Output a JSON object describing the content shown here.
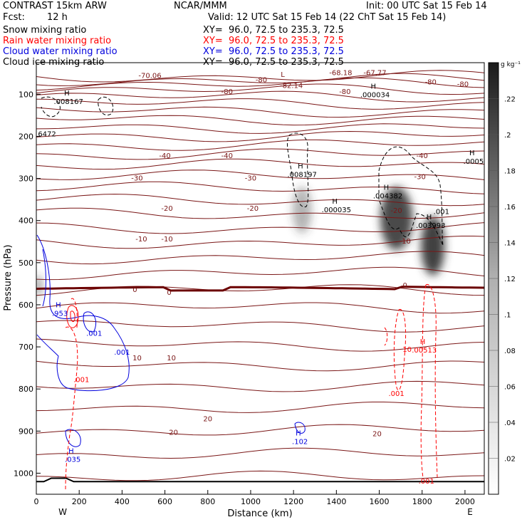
{
  "header": {
    "title": "CONTRAST 15km ARW",
    "fcst_label": "Fcst:",
    "fcst_value": "12 h",
    "center": "NCAR/MMM",
    "init": "Init: 00 UTC Sat 15 Feb 14",
    "valid": "Valid: 12 UTC Sat 15 Feb 14 (22 ChT Sat 15 Feb 14)"
  },
  "fields": [
    {
      "name": "Snow mixing ratio",
      "xy": "XY=  96.0, 72.5 to 235.3, 72.5",
      "color": "#000000"
    },
    {
      "name": "Rain water mixing ratio",
      "xy": "XY=  96.0, 72.5 to 235.3, 72.5",
      "color": "#ff0000"
    },
    {
      "name": "Cloud water mixing ratio",
      "xy": "XY=  96.0, 72.5 to 235.3, 72.5",
      "color": "#0000dd"
    },
    {
      "name": "Cloud ice mixing ratio",
      "xy": "XY=  96.0, 72.5 to 235.3, 72.5",
      "color": "#000000"
    }
  ],
  "colors": {
    "temperature": "#7a1616",
    "freezing": "#6b0000",
    "rain": "#ff0000",
    "cloud_water": "#0000dd",
    "cloud_ice": "#000000",
    "snow_shade": "#3a3a3a"
  },
  "chart_data": {
    "type": "contour cross-section",
    "xlabel": "Distance (km)",
    "ylabel": "Pressure (hPa)",
    "xlim": [
      0,
      2090
    ],
    "ylim": [
      1050,
      25
    ],
    "xticks": [
      "0",
      "200",
      "400",
      "600",
      "800",
      "1000",
      "1200",
      "1400",
      "1600",
      "1800",
      "2000"
    ],
    "yticks": [
      "100",
      "200",
      "300",
      "400",
      "500",
      "600",
      "700",
      "800",
      "900",
      "1000"
    ],
    "x_end_labels": {
      "left": "W",
      "right": "E"
    },
    "colorbar": {
      "unit": "g kg⁻¹",
      "ticks": [
        ".02",
        ".04",
        ".06",
        ".08",
        ".1",
        ".12",
        ".14",
        ".16",
        ".18",
        ".2",
        ".22"
      ],
      "range": [
        0,
        0.24
      ]
    },
    "temperature_labels": [
      {
        "text": "-70.06",
        "x": 530,
        "p": 55
      },
      {
        "text": "-80",
        "x": 1050,
        "p": 65
      },
      {
        "text": "L",
        "x": 1150,
        "p": 52
      },
      {
        "text": "-82.14",
        "x": 1190,
        "p": 78
      },
      {
        "text": "-68.18",
        "x": 1420,
        "p": 48
      },
      {
        "text": "-67.77",
        "x": 1580,
        "p": 48
      },
      {
        "text": "-80",
        "x": 890,
        "p": 93
      },
      {
        "text": "-80",
        "x": 1440,
        "p": 93
      },
      {
        "text": "-80",
        "x": 1840,
        "p": 70
      },
      {
        "text": "-80",
        "x": 1990,
        "p": 75
      },
      {
        "text": "-40",
        "x": 600,
        "p": 245
      },
      {
        "text": "-40",
        "x": 890,
        "p": 245
      },
      {
        "text": "-40",
        "x": 1800,
        "p": 245
      },
      {
        "text": "-30",
        "x": 470,
        "p": 298
      },
      {
        "text": "-30",
        "x": 1000,
        "p": 298
      },
      {
        "text": "-30",
        "x": 1790,
        "p": 295
      },
      {
        "text": "-20",
        "x": 610,
        "p": 370
      },
      {
        "text": "-20",
        "x": 1010,
        "p": 370
      },
      {
        "text": "-20",
        "x": 1680,
        "p": 375
      },
      {
        "text": "-10",
        "x": 490,
        "p": 443
      },
      {
        "text": "-10",
        "x": 610,
        "p": 443
      },
      {
        "text": "-10",
        "x": 1720,
        "p": 448
      },
      {
        "text": "0",
        "x": 460,
        "p": 563
      },
      {
        "text": "0",
        "x": 620,
        "p": 570
      },
      {
        "text": "0",
        "x": 1720,
        "p": 553
      },
      {
        "text": "10",
        "x": 470,
        "p": 725
      },
      {
        "text": "10",
        "x": 630,
        "p": 725
      },
      {
        "text": "20",
        "x": 800,
        "p": 870
      },
      {
        "text": "20",
        "x": 640,
        "p": 902
      },
      {
        "text": "20",
        "x": 1590,
        "p": 905
      }
    ],
    "highs": [
      {
        "text": ".008167",
        "x": 150,
        "p": 120,
        "color": "#000000"
      },
      {
        "text": ".008197",
        "x": 1240,
        "p": 293,
        "color": "#000000"
      },
      {
        "text": ".000035",
        "x": 1400,
        "p": 377,
        "color": "#000000"
      },
      {
        "text": ".004382",
        "x": 1640,
        "p": 344,
        "color": "#000000"
      },
      {
        "text": ".003993",
        "x": 1840,
        "p": 414,
        "color": "#000000"
      },
      {
        "text": ".000034",
        "x": 1580,
        "p": 104,
        "color": "#000000"
      },
      {
        "text": ".0005",
        "x": 2040,
        "p": 262,
        "color": "#000000"
      },
      {
        "text": ".953",
        "x": 110,
        "p": 623,
        "color": "#0000dd"
      },
      {
        "text": ".035",
        "x": 170,
        "p": 970,
        "color": "#0000dd"
      },
      {
        "text": ".102",
        "x": 1230,
        "p": 927,
        "color": "#0000dd"
      },
      {
        "text": ".00513",
        "x": 1810,
        "p": 710,
        "color": "#ff0000"
      }
    ],
    "other_labels": [
      {
        "text": "6472",
        "x": 50,
        "p": 193,
        "color": "#000000"
      },
      {
        "text": ".001",
        "x": 1890,
        "p": 378,
        "color": "#000000"
      },
      {
        "text": ".001",
        "x": 270,
        "p": 667,
        "color": "#0000dd"
      },
      {
        "text": ".001",
        "x": 400,
        "p": 712,
        "color": "#0000dd"
      },
      {
        "text": ".001",
        "x": 210,
        "p": 777,
        "color": "#ff0000"
      },
      {
        "text": "10",
        "x": 1730,
        "p": 705,
        "color": "#ff0000"
      },
      {
        "text": ".001",
        "x": 1680,
        "p": 810,
        "color": "#ff0000"
      },
      {
        "text": ".001",
        "x": 1820,
        "p": 1018,
        "color": "#ff0000"
      }
    ],
    "snow_maxima": [
      {
        "x": 1240,
        "p": 375,
        "sx": 45,
        "sp": 55,
        "value": 0.09
      },
      {
        "x": 1680,
        "p": 395,
        "sx": 75,
        "sp": 75,
        "value": 0.22
      },
      {
        "x": 1850,
        "p": 460,
        "sx": 55,
        "sp": 70,
        "value": 0.23
      },
      {
        "x": 10,
        "p": 555,
        "sx": 15,
        "sp": 25,
        "value": 0.14
      }
    ]
  }
}
